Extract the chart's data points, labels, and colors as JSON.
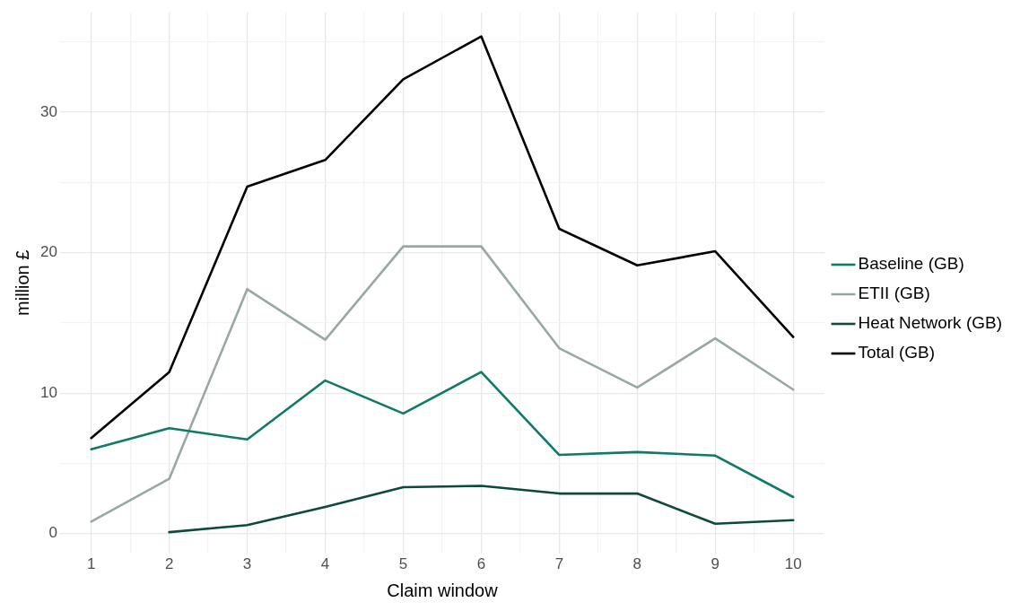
{
  "chart_data": {
    "type": "line",
    "xlabel": "Claim window",
    "ylabel": "million £",
    "x": [
      1,
      2,
      3,
      4,
      5,
      6,
      7,
      8,
      9,
      10
    ],
    "series": [
      {
        "name": "Baseline (GB)",
        "color": "#0f7a66",
        "values": [
          6.0,
          7.5,
          6.7,
          10.9,
          8.55,
          11.5,
          5.6,
          5.8,
          5.55,
          2.6
        ]
      },
      {
        "name": "ETII (GB)",
        "color": "#9aa8a2",
        "values": [
          0.85,
          3.9,
          17.4,
          13.8,
          20.45,
          20.45,
          13.2,
          10.4,
          13.9,
          10.25
        ]
      },
      {
        "name": "Heat Network (GB)",
        "color": "#0b4a3c",
        "values": [
          null,
          0.1,
          0.6,
          1.9,
          3.3,
          3.4,
          2.85,
          2.85,
          0.7,
          0.95
        ]
      },
      {
        "name": "Total (GB)",
        "color": "#000000",
        "values": [
          6.8,
          11.5,
          24.7,
          26.6,
          32.35,
          35.4,
          21.7,
          19.1,
          20.1,
          14.0
        ]
      }
    ],
    "xlim": [
      0.6,
      10.4
    ],
    "xticks": [
      1,
      {
        "value": 1.5,
        "label": null
      },
      2,
      {
        "value": 2.5,
        "label": null
      },
      3,
      {
        "value": 3.5,
        "label": null
      },
      4,
      {
        "value": 4.5,
        "label": null
      },
      5,
      {
        "value": 5.5,
        "label": null
      },
      6,
      {
        "value": 6.5,
        "label": null
      },
      7,
      {
        "value": 7.5,
        "label": null
      },
      8,
      {
        "value": 8.5,
        "label": null
      },
      9,
      {
        "value": 9.5,
        "label": null
      },
      10
    ],
    "ylim": [
      -1.4,
      37.1
    ],
    "yticks": [
      0,
      {
        "value": 5,
        "label": null
      },
      10,
      {
        "value": 15,
        "label": null
      },
      20,
      {
        "value": 25,
        "label": null
      },
      30,
      {
        "value": 35,
        "label": null
      }
    ],
    "grid": true,
    "legend": "right",
    "marker": "none",
    "line_style": "solid"
  }
}
